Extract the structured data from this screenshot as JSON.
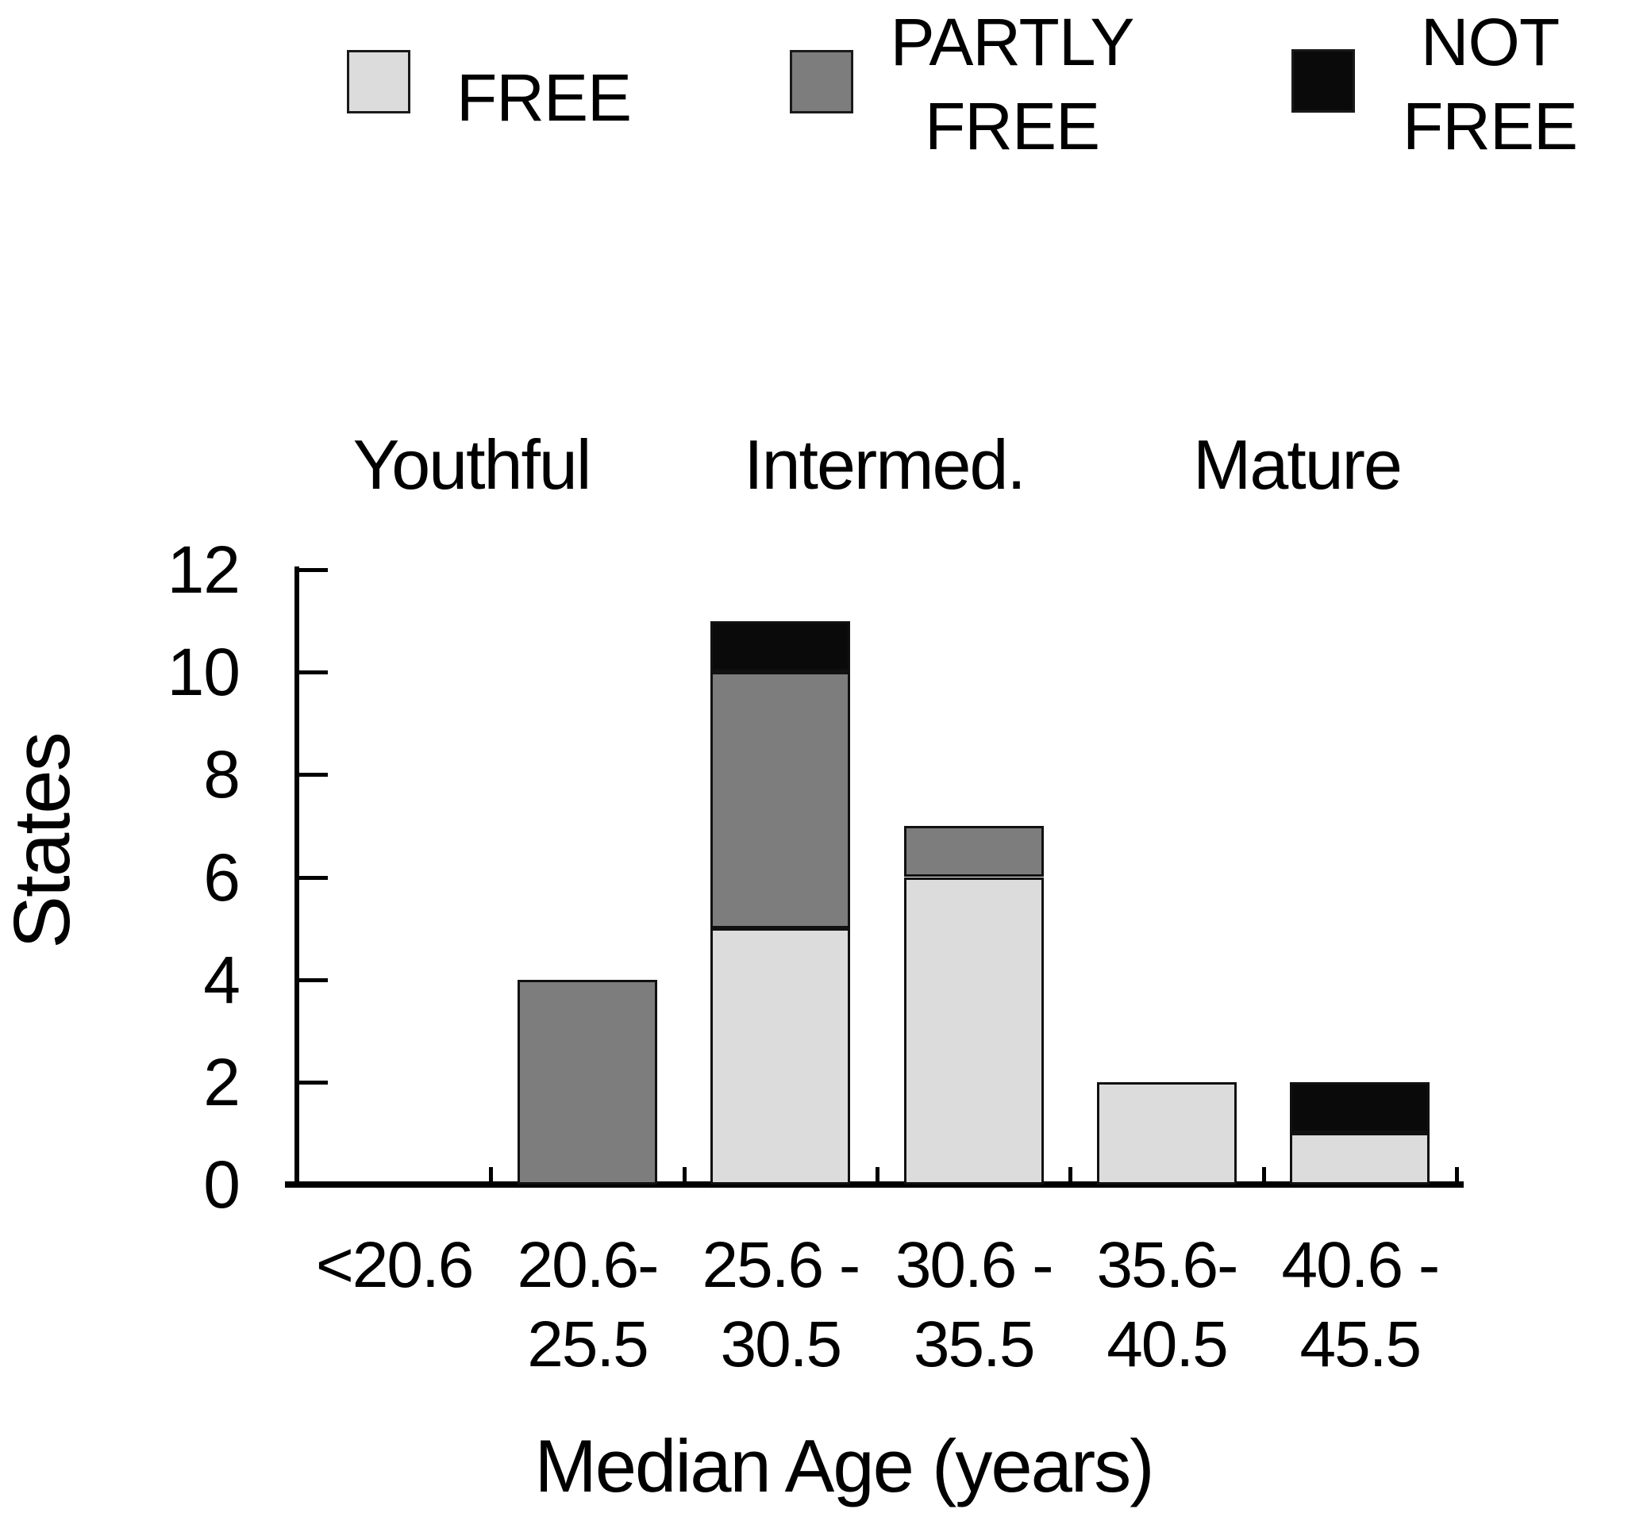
{
  "legend": {
    "items": [
      {
        "name": "legend-free",
        "label_lines": [
          "FREE"
        ],
        "color": "#dcdcdc"
      },
      {
        "name": "legend-partly-free",
        "label_lines": [
          "PARTLY",
          "FREE"
        ],
        "color": "#7d7d7d"
      },
      {
        "name": "legend-not-free",
        "label_lines": [
          "NOT",
          "FREE"
        ],
        "color": "#0a0a0a"
      }
    ]
  },
  "chart_data": {
    "type": "bar",
    "stacked": true,
    "title": "",
    "xlabel": "Median Age (years)",
    "ylabel": "States",
    "ylim": [
      0,
      12
    ],
    "yticks": [
      0,
      2,
      4,
      6,
      8,
      10,
      12
    ],
    "grid": false,
    "legend_position": "top",
    "age_group_labels": [
      "Youthful",
      "Intermed.",
      "Mature"
    ],
    "categories": [
      "<20.6",
      "20.6-\n25.5",
      "25.6 -\n30.5",
      "30.6 -\n35.5",
      "35.6-\n40.5",
      "40.6 -\n45.5"
    ],
    "series": [
      {
        "name": "FREE",
        "color": "#dcdcdc",
        "values": [
          0,
          0,
          5,
          6,
          2,
          1
        ]
      },
      {
        "name": "PARTLY FREE",
        "color": "#7d7d7d",
        "values": [
          0,
          4,
          5,
          1,
          0,
          0
        ]
      },
      {
        "name": "NOT FREE",
        "color": "#0a0a0a",
        "values": [
          0,
          0,
          1,
          0,
          0,
          1
        ]
      }
    ],
    "totals": [
      0,
      4,
      11,
      7,
      2,
      2
    ]
  }
}
